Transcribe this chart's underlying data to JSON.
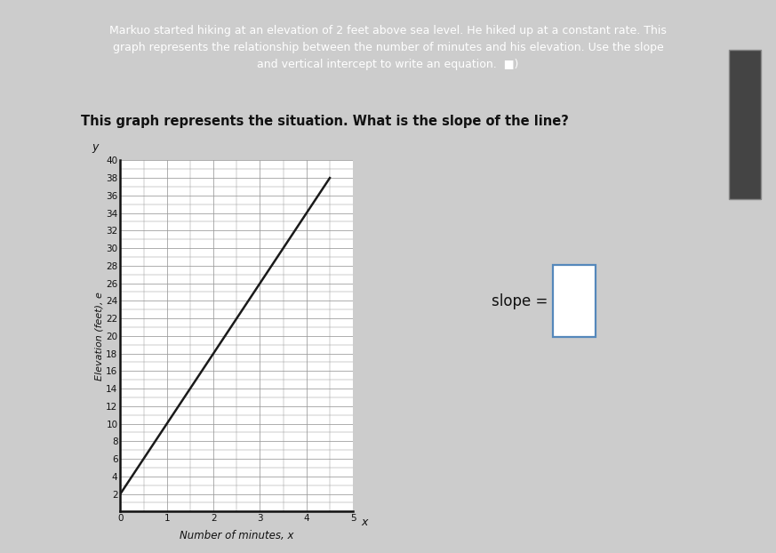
{
  "header_text": "Markuo started hiking at an elevation of 2 feet above sea level. He hiked up at a constant rate. This\ngraph represents the relationship between the number of minutes and his elevation. Use the slope\nand vertical intercept to write an equation.  ■)",
  "subheader_text": "This graph represents the situation. What is the slope of the line?",
  "header_bg_color": "#2d3561",
  "header_text_color": "#ffffff",
  "body_bg_color": "#cccccc",
  "plot_bg_color": "#ffffff",
  "line_x": [
    0,
    4.5
  ],
  "line_y": [
    2,
    38
  ],
  "slope": 8,
  "y_intercept": 2,
  "x_min": 0,
  "x_max": 5,
  "y_min": 0,
  "y_max": 40,
  "x_ticks": [
    0,
    1,
    2,
    3,
    4,
    5
  ],
  "y_ticks": [
    2,
    4,
    6,
    8,
    10,
    12,
    14,
    16,
    18,
    20,
    22,
    24,
    26,
    28,
    30,
    32,
    34,
    36,
    38,
    40
  ],
  "xlabel": "Number of minutes, x",
  "ylabel": "Elevation (feet), e",
  "line_color": "#1a1a1a",
  "grid_color": "#999999",
  "slope_label": "slope =",
  "slope_box_color": "#5588bb",
  "header_fontsize": 9.0,
  "subheader_fontsize": 10.5,
  "tick_fontsize": 7.5,
  "xlabel_fontsize": 8.5,
  "ylabel_fontsize": 8.0
}
